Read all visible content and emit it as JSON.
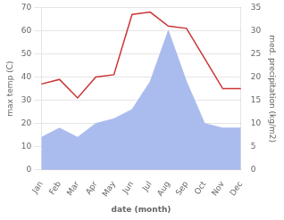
{
  "chart_data": {
    "type": "line",
    "categories": [
      "Jan",
      "Feb",
      "Mar",
      "Apr",
      "May",
      "Jun",
      "Jul",
      "Aug",
      "Sep",
      "Oct",
      "Nov",
      "Dec"
    ],
    "xlabel": "date (month)",
    "ylabel": "max temp (C)",
    "y2label": "med. precipitation (kg/m2)",
    "series": [
      {
        "type": "area",
        "color": "#aabbee",
        "axis": "y2",
        "values": [
          7,
          9,
          7,
          10,
          11,
          13,
          19,
          30,
          19,
          10,
          9,
          9
        ]
      },
      {
        "type": "line",
        "color": "#cc3333",
        "values": [
          37,
          39,
          31,
          40,
          41,
          67,
          68,
          62,
          61,
          48,
          35,
          35
        ]
      }
    ],
    "ylim": [
      0,
      70
    ],
    "yticks": [
      0,
      10,
      20,
      30,
      40,
      50,
      60,
      70
    ],
    "y2lim": [
      0,
      35
    ],
    "y2ticks": [
      0,
      5,
      10,
      15,
      20,
      25,
      30,
      35
    ],
    "grid": true
  }
}
